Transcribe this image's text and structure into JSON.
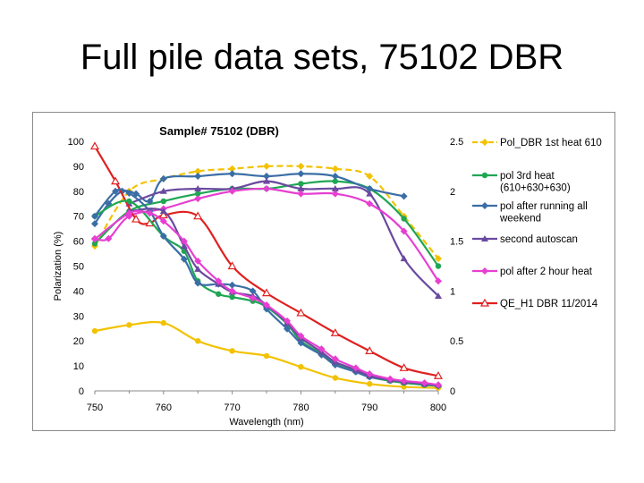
{
  "slide": {
    "title": "Full pile data sets, 75102 DBR"
  },
  "chart_data": {
    "type": "line",
    "title": "Sample# 75102 (DBR)",
    "xlabel": "Wavelength (nm)",
    "ylabel": "Polarization (%)",
    "xlim": [
      750,
      800
    ],
    "ylim": [
      0,
      100
    ],
    "y2lim": [
      0,
      2.5
    ],
    "x_ticks": [
      "750",
      "760",
      "770",
      "780",
      "790",
      "800"
    ],
    "y_ticks": [
      "0",
      "10",
      "20",
      "30",
      "40",
      "50",
      "60",
      "70",
      "80",
      "90",
      "100"
    ],
    "y2_ticks": [
      "0",
      "0.5",
      "1",
      "1.5",
      "2",
      "2.5"
    ],
    "grid": false,
    "legend_position": "right",
    "series": [
      {
        "name": "Pol_DBR 1st heat 610",
        "color": "#f2c200",
        "marker": "diamond",
        "dash": "dashed",
        "axis": "left",
        "x": [
          750,
          755,
          760,
          765,
          770,
          775,
          780,
          785,
          790,
          795,
          800
        ],
        "y": [
          58,
          80,
          85,
          88,
          89,
          90,
          90,
          89,
          86,
          70,
          53
        ]
      },
      {
        "name": "pol 3rd heat (610+630+630)",
        "color": "#1fa653",
        "marker": "circle",
        "dash": "solid",
        "axis": "left",
        "x": [
          750,
          755,
          760,
          765,
          770,
          775,
          780,
          785,
          790,
          795,
          800
        ],
        "y": [
          59,
          72,
          76,
          79,
          81,
          81,
          83,
          84,
          81,
          69,
          50
        ]
      },
      {
        "name": "pol after running all weekend",
        "color": "#3a6ea5",
        "marker": "diamond",
        "dash": "solid",
        "axis": "left",
        "x": [
          750,
          752,
          754,
          756,
          758,
          760,
          765,
          770,
          775,
          780,
          785,
          790,
          795
        ],
        "y": [
          67,
          75,
          80,
          79,
          76,
          85,
          86,
          87,
          86,
          87,
          86,
          81,
          78
        ]
      },
      {
        "name": "second autoscan",
        "color": "#6a4aa0",
        "marker": "triangle",
        "dash": "solid",
        "axis": "left",
        "x": [
          755,
          760,
          765,
          770,
          775,
          780,
          785,
          790,
          795,
          800
        ],
        "y": [
          75,
          80,
          81,
          81,
          84,
          81,
          81,
          79,
          53,
          38
        ]
      },
      {
        "name": "pol after 2 hour heat",
        "color": "#e63fd1",
        "marker": "diamond",
        "dash": "solid",
        "axis": "left",
        "x": [
          750,
          752,
          755,
          760,
          765,
          770,
          775,
          780,
          785,
          790,
          795,
          800
        ],
        "y": [
          61,
          61,
          70,
          73,
          77,
          80,
          81,
          79,
          79,
          75,
          64,
          44
        ]
      },
      {
        "name": "QE_H1 DBR 11/2014",
        "color": "#e02020",
        "marker": "triangle",
        "dash": "solid",
        "axis": "right",
        "x": [
          750,
          753,
          756,
          758,
          760,
          765,
          770,
          775,
          780,
          785,
          790,
          795,
          800
        ],
        "y": [
          2.45,
          2.1,
          1.72,
          1.68,
          1.76,
          1.75,
          1.25,
          0.98,
          0.78,
          0.58,
          0.4,
          0.23,
          0.15
        ]
      },
      {
        "name": "",
        "color": "#f2c200",
        "marker": "circle",
        "dash": "solid",
        "axis": "right",
        "x": [
          750,
          755,
          760,
          765,
          770,
          775,
          780,
          785,
          790,
          795,
          800
        ],
        "y": [
          0.6,
          0.66,
          0.68,
          0.5,
          0.4,
          0.35,
          0.24,
          0.13,
          0.07,
          0.04,
          0.03
        ]
      },
      {
        "name": "",
        "color": "#1fa653",
        "marker": "circle",
        "dash": "solid",
        "axis": "right",
        "x": [
          750,
          755,
          760,
          763,
          765,
          768,
          770,
          773,
          775,
          778,
          780,
          783,
          785,
          788,
          790,
          793,
          795,
          798,
          800
        ],
        "y": [
          1.75,
          1.9,
          1.55,
          1.4,
          1.1,
          0.97,
          0.94,
          0.9,
          0.84,
          0.67,
          0.5,
          0.37,
          0.27,
          0.19,
          0.14,
          0.1,
          0.08,
          0.06,
          0.05
        ]
      },
      {
        "name": "",
        "color": "#3a6ea5",
        "marker": "diamond",
        "dash": "solid",
        "axis": "right",
        "x": [
          750,
          753,
          755,
          758,
          760,
          763,
          765,
          768,
          770,
          773,
          775,
          778,
          780,
          783,
          785,
          788,
          790,
          793,
          795,
          798,
          800
        ],
        "y": [
          1.75,
          2.0,
          1.98,
          1.8,
          1.55,
          1.32,
          1.08,
          1.07,
          1.06,
          1.0,
          0.82,
          0.62,
          0.48,
          0.36,
          0.26,
          0.19,
          0.14,
          0.11,
          0.09,
          0.07,
          0.05
        ]
      },
      {
        "name": "",
        "color": "#6a4aa0",
        "marker": "triangle",
        "dash": "solid",
        "axis": "right",
        "x": [
          755,
          760,
          763,
          765,
          768,
          770,
          773,
          775,
          778,
          780,
          783,
          785,
          788,
          790,
          793,
          795,
          798,
          800
        ],
        "y": [
          1.8,
          1.8,
          1.45,
          1.22,
          1.07,
          0.99,
          0.95,
          0.86,
          0.68,
          0.53,
          0.39,
          0.29,
          0.21,
          0.15,
          0.11,
          0.09,
          0.07,
          0.06
        ]
      },
      {
        "name": "",
        "color": "#e63fd1",
        "marker": "diamond",
        "dash": "solid",
        "axis": "right",
        "x": [
          750,
          755,
          758,
          760,
          763,
          765,
          768,
          770,
          773,
          775,
          778,
          780,
          783,
          785,
          788,
          790,
          793,
          795,
          798,
          800
        ],
        "y": [
          1.52,
          1.78,
          1.78,
          1.7,
          1.5,
          1.3,
          1.1,
          1.0,
          0.93,
          0.86,
          0.7,
          0.55,
          0.42,
          0.32,
          0.23,
          0.17,
          0.12,
          0.1,
          0.08,
          0.06
        ]
      }
    ]
  }
}
